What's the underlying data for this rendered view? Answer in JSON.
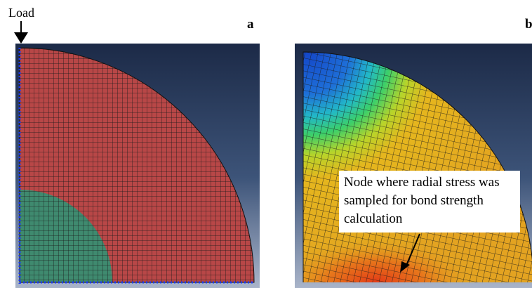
{
  "load_label": "Load",
  "panels": [
    {
      "label": "a"
    },
    {
      "label": "b"
    }
  ],
  "annotation_lines": [
    "Node where radial stress was",
    "sampled for bond strength",
    "calculation"
  ]
}
